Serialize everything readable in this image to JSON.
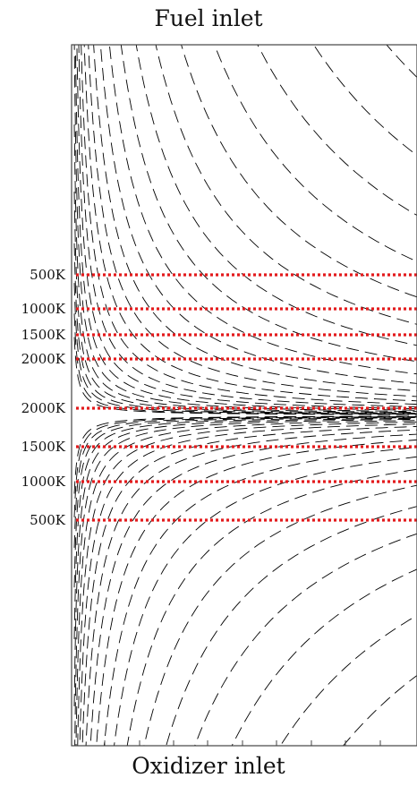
{
  "titles": {
    "top": "Fuel inlet",
    "bottom": "Oxidizer inlet"
  },
  "colors": {
    "isotherm": "#e31a1c",
    "streamline": "#000000",
    "frame": "#444444"
  },
  "isotherms": [
    {
      "label": "500K",
      "side": "fuel"
    },
    {
      "label": "1000K",
      "side": "fuel"
    },
    {
      "label": "1500K",
      "side": "fuel"
    },
    {
      "label": "2000K",
      "side": "fuel"
    },
    {
      "label": "2000K",
      "side": "oxidizer"
    },
    {
      "label": "1500K",
      "side": "oxidizer"
    },
    {
      "label": "1000K",
      "side": "oxidizer"
    },
    {
      "label": "500K",
      "side": "oxidizer"
    }
  ]
}
